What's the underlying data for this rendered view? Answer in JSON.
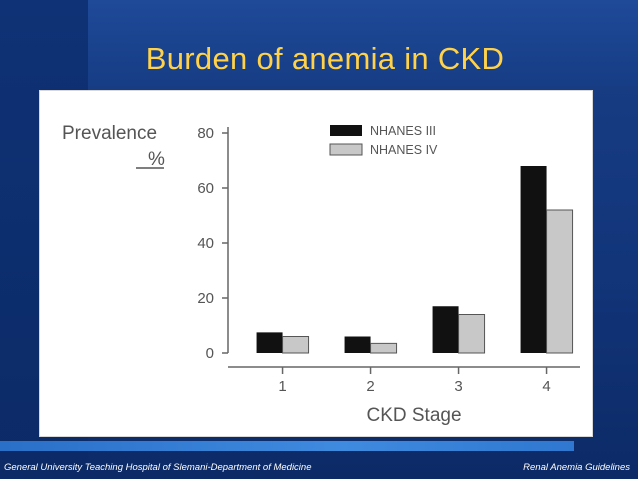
{
  "slide": {
    "title": "Burden of anemia in CKD",
    "footer_left": "General University Teaching Hospital of Slemani-Department of Medicine",
    "footer_right": "Renal Anemia Guidelines"
  },
  "colors": {
    "series_dark": "#111111",
    "series_light": "#c8c8c8",
    "axis": "#666666",
    "title": "#ffd24a"
  },
  "chart_data": {
    "type": "bar",
    "ylabel": "Prevalence",
    "yunit": "%",
    "xlabel": "CKD Stage",
    "categories": [
      "1",
      "2",
      "3",
      "4"
    ],
    "series": [
      {
        "name": "NHANES III",
        "values": [
          7.5,
          6,
          17,
          68
        ]
      },
      {
        "name": "NHANES IV",
        "values": [
          6,
          3.5,
          14,
          52
        ]
      }
    ],
    "ylim": [
      0,
      80
    ],
    "yticks": [
      0,
      20,
      40,
      60,
      80
    ],
    "legend_position": "top-right",
    "grid": false
  }
}
